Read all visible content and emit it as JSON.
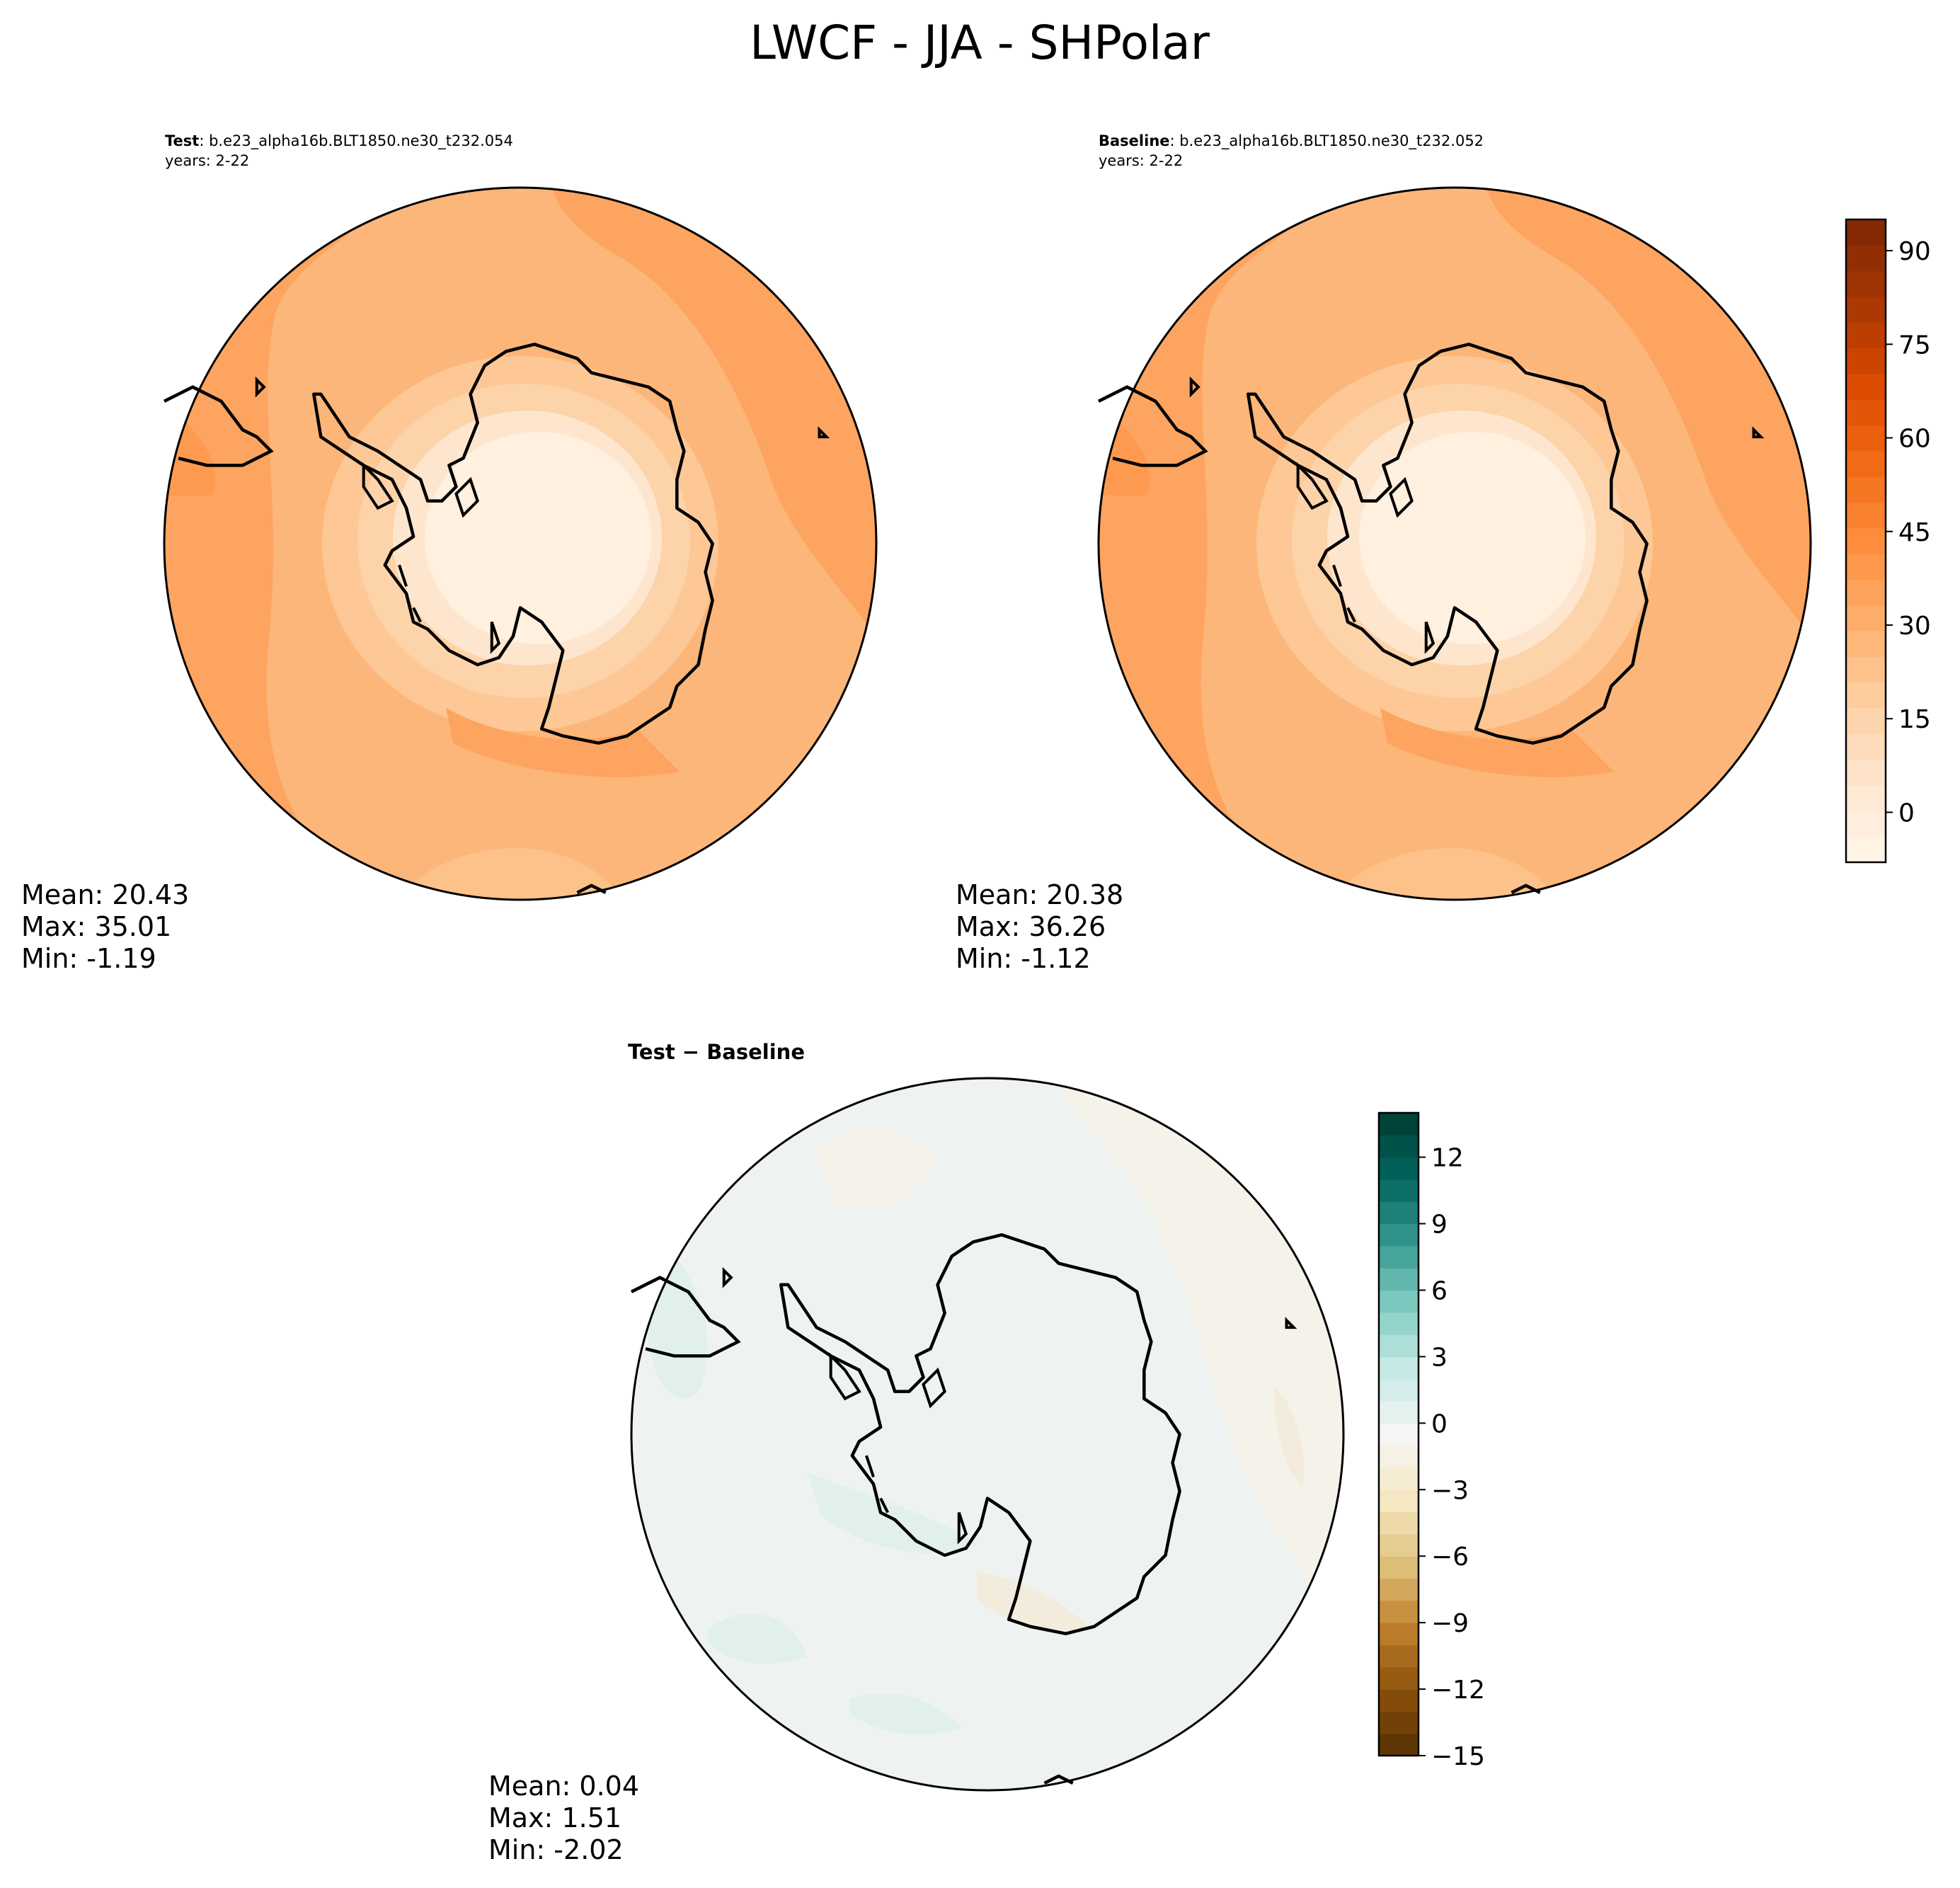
{
  "figure": {
    "title": "LWCF - JJA - SHPolar",
    "test_panel": {
      "label_bold": "Test",
      "label_rest": ": b.e23_alpha16b.BLT1850.ne30_t232.054",
      "years": "years: 2-22",
      "mean": "Mean: 20.43",
      "max": "Max: 35.01",
      "min": "Min: -1.19"
    },
    "baseline_panel": {
      "label_bold": "Baseline",
      "label_rest": ": b.e23_alpha16b.BLT1850.ne30_t232.052",
      "years": "years: 2-22",
      "mean": "Mean: 20.38",
      "max": "Max: 36.26",
      "min": "Min: -1.12"
    },
    "diff_panel": {
      "title": "Test − Baseline",
      "mean": "Mean:  0.04",
      "max": "Max:  1.51",
      "min": "Min: -2.02"
    }
  },
  "chart_data": [
    {
      "type": "heatmap",
      "title": "Test: b.e23_alpha16b.BLT1850.ne30_t232.054",
      "projection": "south-polar-stereographic",
      "colormap": "Oranges",
      "colorbar": {
        "min": -8,
        "max": 95,
        "ticks": [
          0,
          15,
          30,
          45,
          60,
          75,
          90
        ],
        "levels": 25,
        "shared_with": "baseline"
      },
      "stats": {
        "mean": 20.43,
        "max": 35.01,
        "min": -1.19
      }
    },
    {
      "type": "heatmap",
      "title": "Baseline: b.e23_alpha16b.BLT1850.ne30_t232.052",
      "projection": "south-polar-stereographic",
      "colormap": "Oranges",
      "colorbar": {
        "min": -8,
        "max": 95,
        "ticks": [
          0,
          15,
          30,
          45,
          60,
          75,
          90
        ],
        "levels": 25,
        "placement": "right"
      },
      "stats": {
        "mean": 20.38,
        "max": 36.26,
        "min": -1.12
      }
    },
    {
      "type": "heatmap",
      "title": "Test − Baseline",
      "projection": "south-polar-stereographic",
      "colormap": "BrBG",
      "colorbar": {
        "min": -15,
        "max": 14,
        "ticks": [
          -15,
          -12,
          -9,
          -6,
          -3,
          0,
          3,
          6,
          9,
          12
        ],
        "tick_labels": [
          "−15",
          "−12",
          "−9",
          "−6",
          "−3",
          "0",
          "3",
          "6",
          "9",
          "12"
        ],
        "levels": 29,
        "placement": "right"
      },
      "stats": {
        "mean": 0.04,
        "max": 1.51,
        "min": -2.02
      }
    }
  ],
  "colors": {
    "oranges_low": "#fff5eb",
    "oranges_mid": "#fdae6b",
    "oranges_high": "#7f2704",
    "brbg_low": "#543005",
    "brbg_mid": "#f5f5f5",
    "brbg_high": "#003c30",
    "coastline": "#000000"
  }
}
